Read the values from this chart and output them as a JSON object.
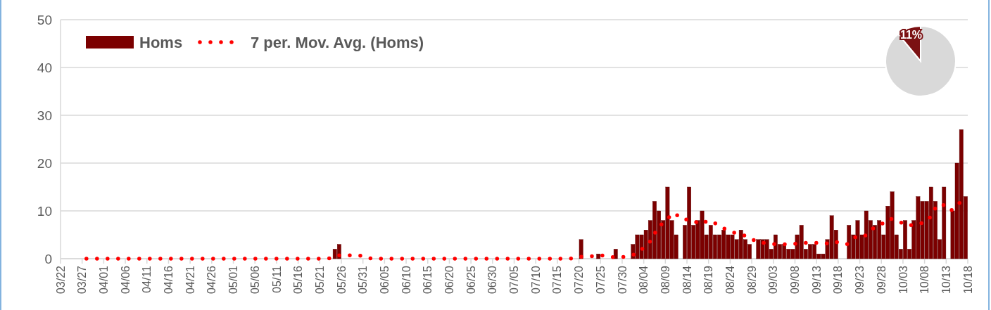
{
  "chart_data": [
    {
      "type": "bar",
      "grid": "y",
      "legend": "top left",
      "line_style": "dotted",
      "xlim": [
        "--03-22",
        "--10-18"
      ],
      "xticks": [
        {
          "value": "--03-22",
          "label": "03/22"
        },
        {
          "value": "--03-27",
          "label": "03/27"
        },
        {
          "value": "--04-01",
          "label": "04/01"
        },
        {
          "value": "--04-06",
          "label": "04/06"
        },
        {
          "value": "--04-11",
          "label": "04/11"
        },
        {
          "value": "--04-16",
          "label": "04/16"
        },
        {
          "value": "--04-21",
          "label": "04/21"
        },
        {
          "value": "--04-26",
          "label": "04/26"
        },
        {
          "value": "--05-01",
          "label": "05/01"
        },
        {
          "value": "--05-06",
          "label": "05/06"
        },
        {
          "value": "--05-11",
          "label": "05/11"
        },
        {
          "value": "--05-16",
          "label": "05/16"
        },
        {
          "value": "--05-21",
          "label": "05/21"
        },
        {
          "value": "--05-26",
          "label": "05/26"
        },
        {
          "value": "--05-31",
          "label": "05/31"
        },
        {
          "value": "--06-05",
          "label": "06/05"
        },
        {
          "value": "--06-10",
          "label": "06/10"
        },
        {
          "value": "--06-15",
          "label": "06/15"
        },
        {
          "value": "--06-20",
          "label": "06/20"
        },
        {
          "value": "--06-25",
          "label": "06/25"
        },
        {
          "value": "--06-30",
          "label": "06/30"
        },
        {
          "value": "--07-05",
          "label": "07/05"
        },
        {
          "value": "--07-10",
          "label": "07/10"
        },
        {
          "value": "--07-15",
          "label": "07/15"
        },
        {
          "value": "--07-20",
          "label": "07/20"
        },
        {
          "value": "--07-25",
          "label": "07/25"
        },
        {
          "value": "--07-30",
          "label": "07/30"
        },
        {
          "value": "--08-04",
          "label": "08/04"
        },
        {
          "value": "--08-09",
          "label": "08/09"
        },
        {
          "value": "--08-14",
          "label": "08/14"
        },
        {
          "value": "--08-19",
          "label": "08/19"
        },
        {
          "value": "--08-24",
          "label": "08/24"
        },
        {
          "value": "--08-29",
          "label": "08/29"
        },
        {
          "value": "--09-03",
          "label": "09/03"
        },
        {
          "value": "--09-08",
          "label": "09/08"
        },
        {
          "value": "--09-13",
          "label": "09/13"
        },
        {
          "value": "--09-18",
          "label": "09/18"
        },
        {
          "value": "--09-23",
          "label": "09/23"
        },
        {
          "value": "--09-28",
          "label": "09/28"
        },
        {
          "value": "--10-03",
          "label": "10/03"
        },
        {
          "value": "--10-08",
          "label": "10/08"
        },
        {
          "value": "--10-13",
          "label": "10/13"
        },
        {
          "value": "--10-18",
          "label": "10/18"
        }
      ],
      "ylim": [
        0,
        50
      ],
      "yticks": [
        0,
        10,
        20,
        30,
        40,
        50
      ],
      "series": [
        {
          "name": "Homs",
          "type": "bar",
          "color": "#7b0000",
          "x": [
            "--05-24",
            "--05-25",
            "--07-20",
            "--07-24",
            "--07-28",
            "--08-01",
            "--08-02",
            "--08-03",
            "--08-04",
            "--08-05",
            "--08-06",
            "--08-07",
            "--08-08",
            "--08-09",
            "--08-10",
            "--08-11",
            "--08-13",
            "--08-14",
            "--08-15",
            "--08-16",
            "--08-17",
            "--08-18",
            "--08-19",
            "--08-20",
            "--08-21",
            "--08-22",
            "--08-23",
            "--08-24",
            "--08-25",
            "--08-26",
            "--08-27",
            "--08-28",
            "--08-30",
            "--08-31",
            "--09-01",
            "--09-02",
            "--09-03",
            "--09-04",
            "--09-05",
            "--09-06",
            "--09-07",
            "--09-08",
            "--09-09",
            "--09-10",
            "--09-11",
            "--09-12",
            "--09-13",
            "--09-14",
            "--09-15",
            "--09-16",
            "--09-17",
            "--09-20",
            "--09-21",
            "--09-22",
            "--09-23",
            "--09-24",
            "--09-25",
            "--09-26",
            "--09-27",
            "--09-28",
            "--09-29",
            "--09-30",
            "--10-01",
            "--10-02",
            "--10-03",
            "--10-04",
            "--10-05",
            "--10-06",
            "--10-07",
            "--10-08",
            "--10-09",
            "--10-10",
            "--10-11",
            "--10-12",
            "--10-14",
            "--10-15",
            "--10-16",
            "--10-17"
          ],
          "values": [
            2,
            3,
            4,
            1,
            2,
            3,
            5,
            5,
            6,
            8,
            12,
            10,
            8,
            15,
            8,
            5,
            7,
            15,
            7,
            8,
            10,
            5,
            7,
            5,
            5,
            6,
            5,
            5,
            4,
            6,
            4,
            3,
            4,
            4,
            4,
            2,
            5,
            3,
            3,
            2,
            2,
            5,
            7,
            2,
            3,
            3,
            1,
            1,
            4,
            9,
            6,
            7,
            5,
            8,
            5,
            10,
            8,
            7,
            8,
            5,
            11,
            14,
            5,
            2,
            8,
            2,
            8,
            13,
            12,
            12,
            15,
            12,
            4,
            15,
            10,
            20,
            27,
            13
          ]
        },
        {
          "name": "7 per. Mov. Avg. (Homs)",
          "type": "line",
          "color": "#ff0000",
          "x": [
            "--03-28",
            "--05-23",
            "--05-25",
            "--05-28",
            "--05-31",
            "--06-02",
            "--07-18",
            "--07-20",
            "--07-23",
            "--07-25",
            "--07-28",
            "--07-30",
            "--08-02",
            "--08-04",
            "--08-06",
            "--08-07",
            "--08-09",
            "--08-11",
            "--08-13",
            "--08-15",
            "--08-17",
            "--08-19",
            "--08-21",
            "--08-23",
            "--08-26",
            "--08-28",
            "--08-30",
            "--09-02",
            "--09-05",
            "--09-07",
            "--09-10",
            "--09-12",
            "--09-15",
            "--09-17",
            "--09-20",
            "--09-22",
            "--09-24",
            "--09-26",
            "--09-28",
            "--09-30",
            "--10-02",
            "--10-04",
            "--10-07",
            "--10-09",
            "--10-10",
            "--10-12",
            "--10-14",
            "--10-15",
            "--10-17"
          ],
          "values": [
            0,
            0,
            0.7,
            0.7,
            0.6,
            0,
            0,
            0.4,
            0.5,
            0.7,
            0.3,
            0.3,
            0.9,
            2.3,
            4.1,
            6.2,
            8.0,
            9.6,
            8.2,
            8.2,
            7.2,
            8.0,
            7.2,
            6.1,
            5.1,
            4.7,
            3.6,
            3.1,
            3.0,
            3.0,
            3.3,
            3.4,
            3.1,
            3.6,
            3.0,
            4.5,
            4.6,
            6.3,
            7.2,
            8.4,
            7.8,
            6.9,
            7.3,
            8.2,
            10.2,
            11.5,
            10.0,
            10.7,
            12.5
          ]
        }
      ]
    },
    {
      "type": "pie",
      "categories": [
        null,
        null
      ],
      "values": [
        89,
        11
      ],
      "colors": [
        "#d9d9d9",
        "#7b1113"
      ],
      "value_labels": [
        null,
        "11%"
      ]
    }
  ]
}
